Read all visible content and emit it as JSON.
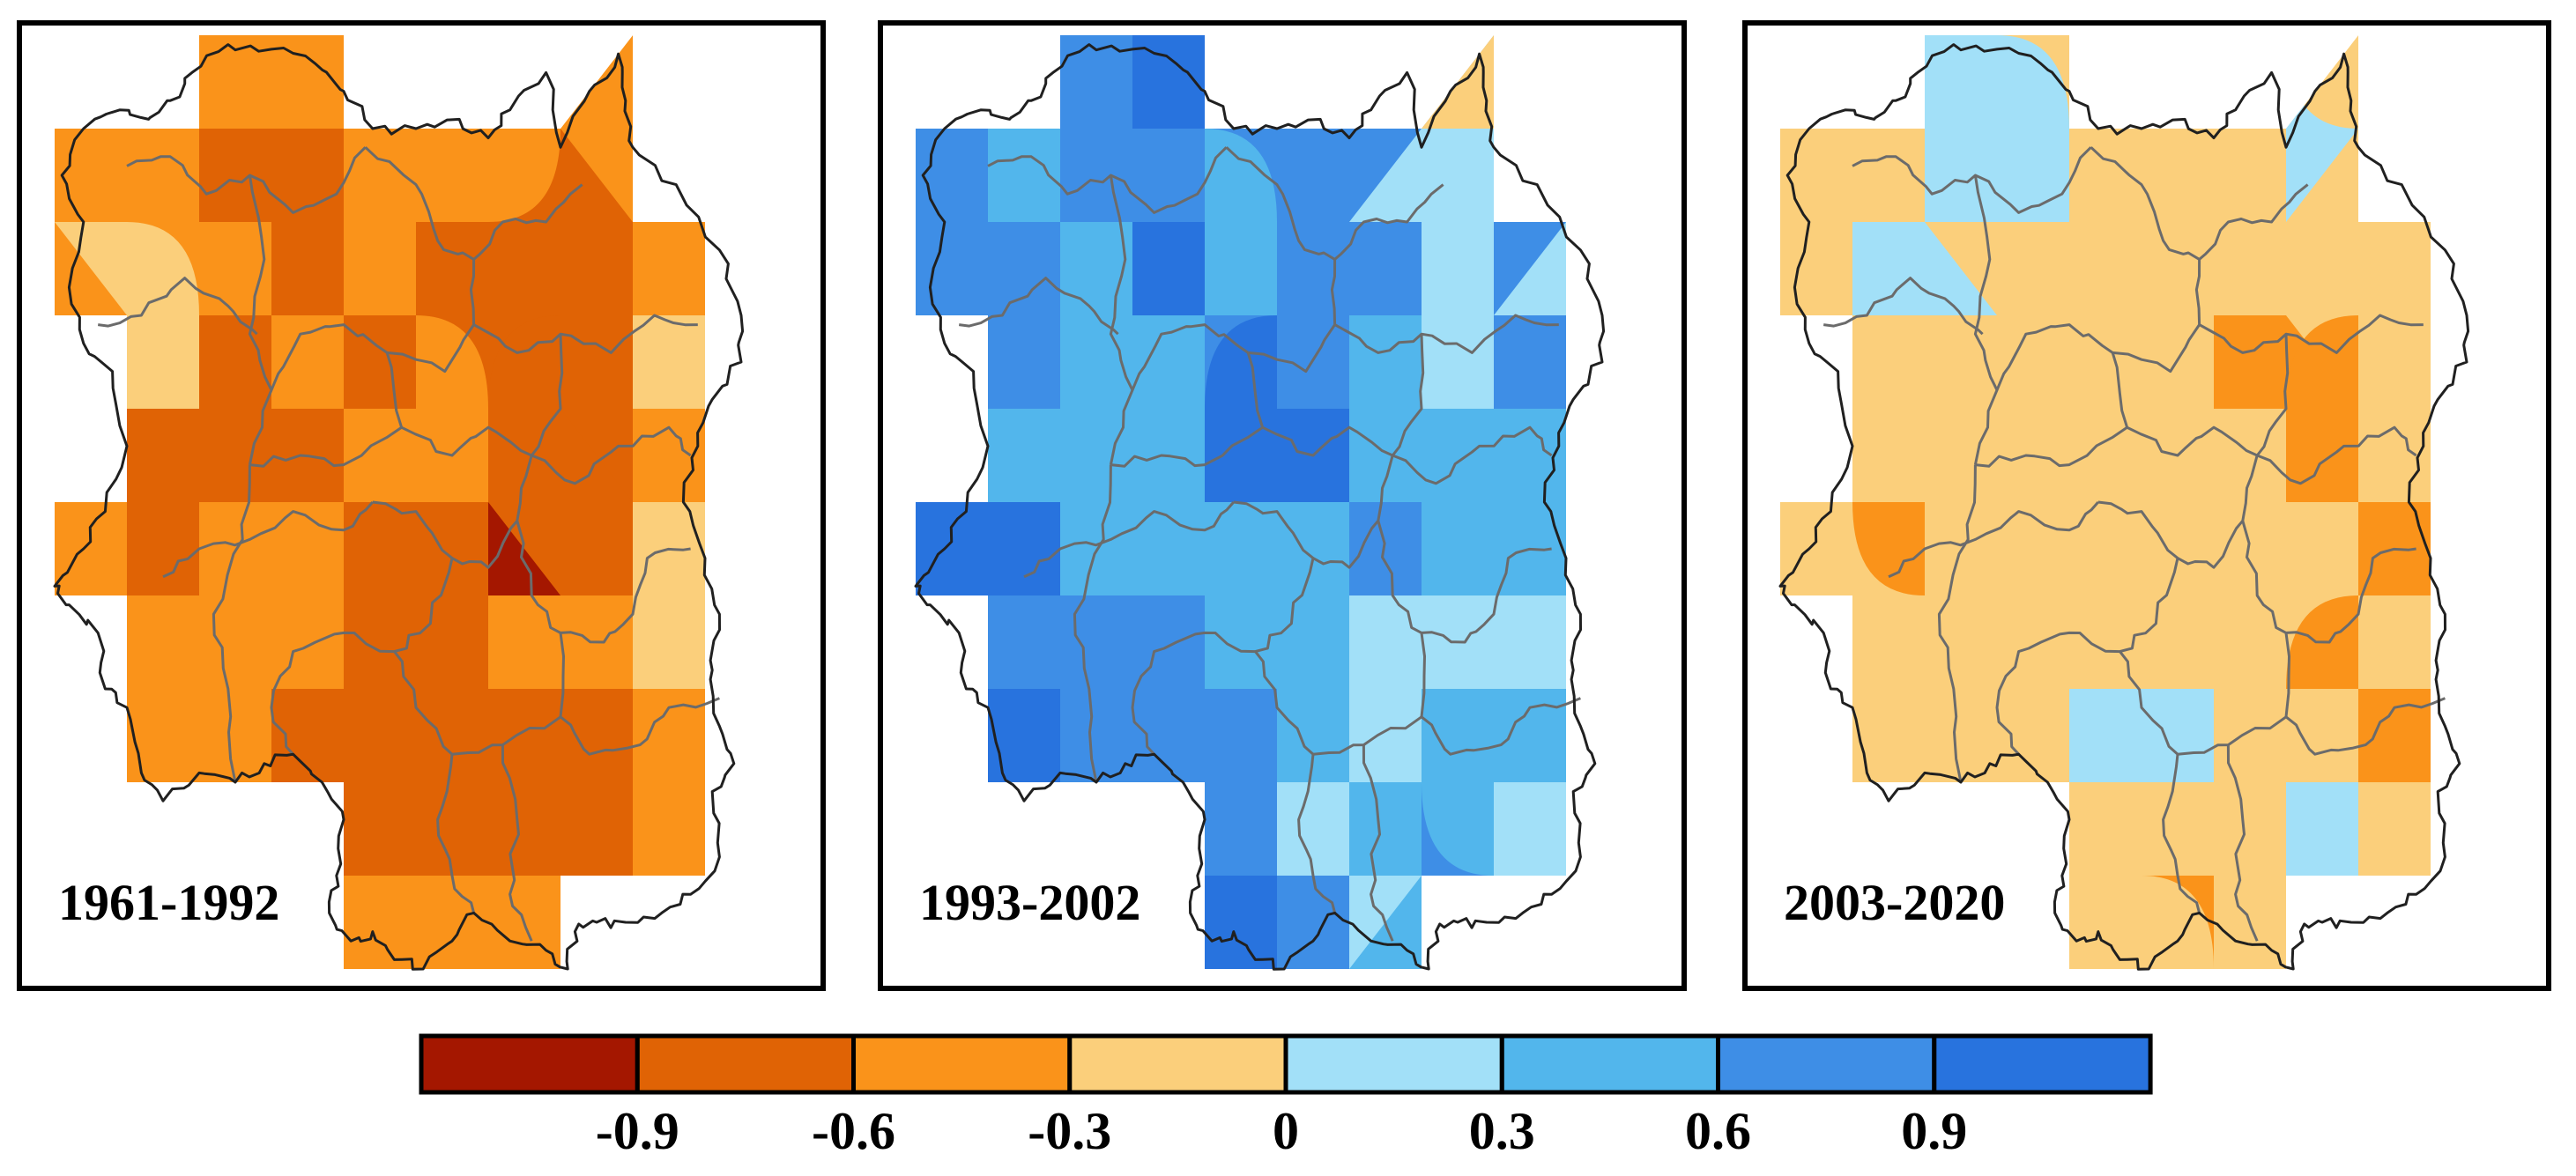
{
  "panels": [
    {
      "period": "1961-1992",
      "base_class": 2,
      "patches": [
        {
          "class": 1,
          "rings": [
            [
              0.3,
              0.15,
              0.05
            ],
            [
              0.36,
              0.22,
              0.04
            ],
            [
              0.24,
              0.36,
              0.045
            ],
            [
              0.16,
              0.57,
              0.05
            ],
            [
              0.39,
              0.49,
              0.04
            ],
            [
              0.45,
              0.33,
              0.035
            ],
            [
              0.58,
              0.32,
              0.04
            ],
            [
              0.52,
              0.67,
              0.06
            ],
            [
              0.6,
              0.82,
              0.06
            ],
            [
              0.42,
              0.86,
              0.05
            ],
            [
              0.55,
              0.9,
              0.04
            ]
          ]
        },
        {
          "class": 1,
          "rings": [
            [
              0.64,
              0.28,
              0.1
            ],
            [
              0.72,
              0.2,
              0.07
            ],
            [
              0.74,
              0.38,
              0.08
            ],
            [
              0.66,
              0.46,
              0.08
            ],
            [
              0.28,
              0.45,
              0.09
            ],
            [
              0.19,
              0.47,
              0.08
            ],
            [
              0.45,
              0.58,
              0.09
            ],
            [
              0.55,
              0.55,
              0.07
            ],
            [
              0.4,
              0.76,
              0.08
            ],
            [
              0.47,
              0.72,
              0.09
            ],
            [
              0.72,
              0.72,
              0.07
            ],
            [
              0.78,
              0.8,
              0.08
            ],
            [
              0.7,
              0.56,
              0.06
            ]
          ]
        },
        {
          "class": 3,
          "rings": [
            [
              0.2,
              0.1,
              0.05
            ],
            [
              0.1,
              0.26,
              0.05
            ],
            [
              0.18,
              0.34,
              0.04
            ],
            [
              0.87,
              0.33,
              0.045
            ],
            [
              0.82,
              0.57,
              0.05
            ],
            [
              0.83,
              0.67,
              0.04
            ],
            [
              0.22,
              0.6,
              0.03
            ],
            [
              0.5,
              0.76,
              0.035
            ],
            [
              0.5,
              0.97,
              0.04
            ],
            [
              0.78,
              0.88,
              0.03
            ],
            [
              0.85,
              0.78,
              0.03
            ]
          ]
        },
        {
          "class": 0,
          "rings": [
            [
              0.68,
              0.09,
              0.035
            ],
            [
              0.69,
              0.15,
              0.03
            ],
            [
              0.61,
              0.56,
              0.04
            ],
            [
              0.55,
              0.6,
              0.025
            ],
            [
              0.51,
              0.64,
              0.025
            ],
            [
              0.53,
              0.74,
              0.01
            ]
          ]
        },
        {
          "class": 4,
          "rings": [
            [
              0.11,
              0.21,
              0.035
            ],
            [
              0.93,
              0.33,
              0.025
            ]
          ]
        }
      ]
    },
    {
      "period": "1993-2002",
      "base_class": 6,
      "patches": [
        {
          "class": 5,
          "rings": [
            [
              0.15,
              0.17,
              0.07
            ],
            [
              0.06,
              0.3,
              0.05
            ],
            [
              0.28,
              0.33,
              0.08
            ],
            [
              0.36,
              0.44,
              0.07
            ],
            [
              0.18,
              0.47,
              0.07
            ],
            [
              0.3,
              0.55,
              0.06
            ],
            [
              0.42,
              0.2,
              0.06
            ],
            [
              0.61,
              0.45,
              0.07
            ],
            [
              0.55,
              0.54,
              0.06
            ],
            [
              0.45,
              0.6,
              0.08
            ],
            [
              0.7,
              0.4,
              0.09
            ],
            [
              0.76,
              0.55,
              0.09
            ],
            [
              0.86,
              0.5,
              0.08
            ],
            [
              0.56,
              0.68,
              0.09
            ],
            [
              0.66,
              0.68,
              0.09
            ],
            [
              0.8,
              0.64,
              0.08
            ],
            [
              0.59,
              0.84,
              0.09
            ],
            [
              0.66,
              0.9,
              0.08
            ],
            [
              0.76,
              0.76,
              0.09
            ],
            [
              0.84,
              0.82,
              0.08
            ],
            [
              0.92,
              0.68,
              0.06
            ]
          ]
        },
        {
          "class": 4,
          "rings": [
            [
              0.72,
              0.14,
              0.07
            ],
            [
              0.77,
              0.23,
              0.06
            ],
            [
              0.84,
              0.16,
              0.06
            ],
            [
              0.9,
              0.28,
              0.06
            ],
            [
              0.92,
              0.38,
              0.05
            ],
            [
              0.74,
              0.34,
              0.04
            ],
            [
              0.71,
              0.62,
              0.06
            ],
            [
              0.67,
              0.72,
              0.05
            ],
            [
              0.86,
              0.64,
              0.04
            ],
            [
              0.58,
              0.82,
              0.06
            ],
            [
              0.6,
              0.91,
              0.05
            ],
            [
              0.8,
              0.8,
              0.06
            ],
            [
              0.88,
              0.86,
              0.06
            ],
            [
              0.93,
              0.74,
              0.04
            ]
          ]
        },
        {
          "class": 3,
          "rings": [
            [
              0.78,
              0.04,
              0.035
            ],
            [
              0.93,
              0.14,
              0.03
            ],
            [
              0.95,
              0.26,
              0.02
            ],
            [
              0.66,
              0.28,
              0.02
            ],
            [
              0.86,
              0.9,
              0.03
            ],
            [
              0.94,
              0.82,
              0.025
            ]
          ]
        },
        {
          "class": 7,
          "rings": [
            [
              0.34,
              0.05,
              0.05
            ],
            [
              0.38,
              0.12,
              0.04
            ],
            [
              0.36,
              0.22,
              0.04
            ],
            [
              0.05,
              0.55,
              0.06
            ],
            [
              0.14,
              0.58,
              0.06
            ],
            [
              0.1,
              0.74,
              0.06
            ],
            [
              0.18,
              0.8,
              0.05
            ],
            [
              0.46,
              0.4,
              0.05
            ],
            [
              0.52,
              0.46,
              0.04
            ],
            [
              0.28,
              0.7,
              0.05
            ],
            [
              0.36,
              0.88,
              0.05
            ],
            [
              0.42,
              0.95,
              0.04
            ],
            [
              0.72,
              0.46,
              0.015
            ]
          ]
        }
      ]
    },
    {
      "period": "2003-2020",
      "base_class": 3,
      "patches": [
        {
          "class": 4,
          "rings": [
            [
              0.32,
              0.1,
              0.06
            ],
            [
              0.27,
              0.18,
              0.06
            ],
            [
              0.18,
              0.28,
              0.06
            ],
            [
              0.08,
              0.34,
              0.05
            ],
            [
              0.24,
              0.06,
              0.05
            ],
            [
              0.72,
              0.1,
              0.06
            ],
            [
              0.84,
              0.04,
              0.05
            ],
            [
              0.93,
              0.1,
              0.04
            ],
            [
              0.44,
              0.71,
              0.04
            ],
            [
              0.5,
              0.74,
              0.05
            ],
            [
              0.56,
              0.78,
              0.04
            ],
            [
              0.74,
              0.86,
              0.02
            ],
            [
              0.08,
              0.8,
              0.015
            ]
          ]
        },
        {
          "class": 2,
          "rings": [
            [
              0.68,
              0.37,
              0.07
            ],
            [
              0.76,
              0.4,
              0.06
            ],
            [
              0.7,
              0.49,
              0.05
            ],
            [
              0.8,
              0.52,
              0.05
            ],
            [
              0.85,
              0.58,
              0.05
            ],
            [
              0.8,
              0.68,
              0.05
            ],
            [
              0.86,
              0.72,
              0.05
            ],
            [
              0.88,
              0.8,
              0.04
            ],
            [
              0.16,
              0.53,
              0.02
            ],
            [
              0.57,
              0.95,
              0.02
            ]
          ]
        }
      ]
    }
  ],
  "legend": {
    "colors": [
      "#a41700",
      "#e06305",
      "#fa931a",
      "#fbcf7b",
      "#a2e0f8",
      "#52b6ec",
      "#3e8ee6",
      "#2873de"
    ],
    "tick_labels": [
      "-0.9",
      "-0.6",
      "-0.3",
      "0",
      "0.3",
      "0.6",
      "0.9"
    ]
  },
  "styles": {
    "boundary_color": "#6b6b6b",
    "frame_color": "#000000"
  }
}
